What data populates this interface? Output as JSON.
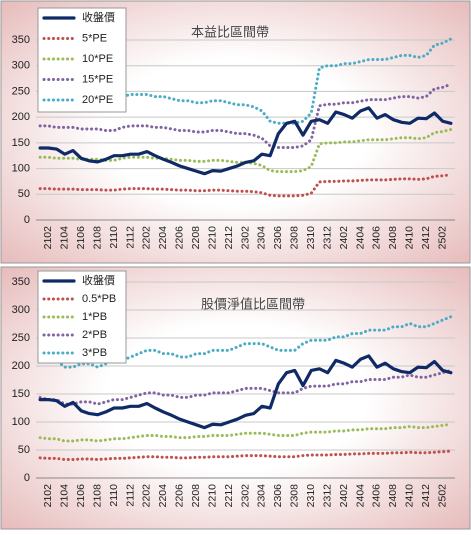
{
  "chart_data": [
    {
      "type": "line",
      "title": "本益比區間帶",
      "grid": true,
      "legend": "upper left",
      "categories": [
        null,
        "2102",
        null,
        "2104",
        null,
        "2106",
        null,
        "2108",
        null,
        "2110",
        null,
        "2112",
        null,
        "2202",
        null,
        "2204",
        null,
        "2206",
        null,
        "2208",
        null,
        "2210",
        null,
        "2212",
        null,
        "2302",
        null,
        "2304",
        null,
        "2306",
        null,
        "2308",
        null,
        "2310",
        null,
        "2312",
        null,
        "2402",
        null,
        "2404",
        null,
        "2406",
        null,
        "2408",
        null,
        "2410",
        null,
        "2412",
        null,
        "2502",
        null
      ],
      "ylim": [
        0,
        350
      ],
      "yticks": [
        0,
        50,
        100,
        150,
        200,
        250,
        300,
        350
      ],
      "series": [
        {
          "name": "收盤價",
          "color": "#0f2a66",
          "values": [
            140,
            140,
            138,
            128,
            135,
            120,
            115,
            113,
            118,
            125,
            125,
            128,
            128,
            133,
            125,
            118,
            112,
            105,
            100,
            95,
            90,
            96,
            95,
            100,
            105,
            112,
            115,
            128,
            125,
            168,
            188,
            192,
            165,
            192,
            195,
            188,
            210,
            205,
            198,
            212,
            218,
            198,
            205,
            195,
            190,
            188,
            198,
            197,
            208,
            192,
            188
          ]
        },
        {
          "name": "5*PE",
          "color": "#c0504d",
          "values": [
            61,
            61,
            60,
            60,
            60,
            59,
            59,
            59,
            58,
            58,
            60,
            61,
            61,
            61,
            60,
            60,
            59,
            58,
            58,
            57,
            57,
            58,
            58,
            57,
            56,
            56,
            55,
            53,
            48,
            47,
            47,
            47,
            48,
            52,
            74,
            75,
            75,
            76,
            76,
            77,
            78,
            78,
            78,
            79,
            80,
            80,
            79,
            80,
            85,
            86,
            88
          ]
        },
        {
          "name": "10*PE",
          "color": "#9bbb59",
          "values": [
            122,
            122,
            120,
            120,
            120,
            118,
            118,
            118,
            116,
            116,
            120,
            122,
            122,
            122,
            120,
            120,
            118,
            116,
            116,
            114,
            114,
            116,
            116,
            114,
            112,
            112,
            110,
            106,
            96,
            94,
            94,
            94,
            96,
            104,
            148,
            150,
            150,
            152,
            152,
            154,
            156,
            156,
            156,
            158,
            160,
            160,
            158,
            160,
            170,
            172,
            176
          ]
        },
        {
          "name": "15*PE",
          "color": "#8064a2",
          "values": [
            183,
            183,
            180,
            180,
            180,
            177,
            177,
            177,
            174,
            174,
            180,
            183,
            183,
            183,
            180,
            180,
            177,
            174,
            174,
            171,
            171,
            174,
            174,
            171,
            168,
            168,
            165,
            159,
            144,
            141,
            141,
            141,
            144,
            156,
            222,
            225,
            225,
            228,
            228,
            231,
            234,
            234,
            234,
            237,
            240,
            240,
            237,
            240,
            255,
            258,
            264
          ]
        },
        {
          "name": "20*PE",
          "color": "#4bacc6",
          "values": [
            244,
            244,
            240,
            240,
            240,
            236,
            236,
            236,
            232,
            232,
            240,
            244,
            244,
            244,
            240,
            240,
            236,
            232,
            232,
            228,
            228,
            232,
            232,
            228,
            224,
            224,
            220,
            212,
            192,
            188,
            188,
            188,
            192,
            208,
            296,
            300,
            300,
            304,
            304,
            308,
            312,
            312,
            312,
            316,
            320,
            320,
            316,
            320,
            340,
            344,
            352
          ]
        }
      ]
    },
    {
      "type": "line",
      "title": "股價淨值比區間帶",
      "grid": true,
      "legend": "upper left",
      "categories": [
        null,
        "2102",
        null,
        "2104",
        null,
        "2106",
        null,
        "2108",
        null,
        "2110",
        null,
        "2112",
        null,
        "2202",
        null,
        "2204",
        null,
        "2206",
        null,
        "2208",
        null,
        "2210",
        null,
        "2212",
        null,
        "2302",
        null,
        "2304",
        null,
        "2306",
        null,
        "2308",
        null,
        "2310",
        null,
        "2312",
        null,
        "2402",
        null,
        "2404",
        null,
        "2406",
        null,
        "2408",
        null,
        "2410",
        null,
        "2412",
        null,
        "2502",
        null
      ],
      "ylim": [
        0,
        350
      ],
      "yticks": [
        0,
        50,
        100,
        150,
        200,
        250,
        300,
        350
      ],
      "series": [
        {
          "name": "收盤價",
          "color": "#0f2a66",
          "values": [
            140,
            140,
            138,
            128,
            135,
            120,
            115,
            113,
            118,
            125,
            125,
            128,
            128,
            133,
            125,
            118,
            112,
            105,
            100,
            95,
            90,
            96,
            95,
            100,
            105,
            112,
            115,
            128,
            125,
            168,
            188,
            192,
            165,
            192,
            195,
            188,
            210,
            205,
            198,
            212,
            218,
            198,
            205,
            195,
            190,
            188,
            198,
            197,
            208,
            192,
            188
          ]
        },
        {
          "name": "0.5*PB",
          "color": "#c0504d",
          "values": [
            36,
            35,
            35,
            33,
            33,
            34,
            34,
            33,
            34,
            35,
            35,
            36,
            37,
            38,
            38,
            37,
            37,
            36,
            36,
            37,
            37,
            38,
            38,
            38,
            39,
            40,
            40,
            40,
            39,
            38,
            38,
            38,
            40,
            41,
            41,
            41,
            42,
            42,
            43,
            43,
            44,
            44,
            44,
            45,
            45,
            46,
            45,
            45,
            46,
            47,
            48
          ]
        },
        {
          "name": "1*PB",
          "color": "#9bbb59",
          "values": [
            72,
            70,
            70,
            66,
            66,
            68,
            68,
            66,
            68,
            70,
            70,
            72,
            74,
            76,
            76,
            74,
            74,
            72,
            72,
            74,
            74,
            76,
            76,
            76,
            78,
            80,
            80,
            80,
            78,
            76,
            76,
            76,
            80,
            82,
            82,
            82,
            84,
            84,
            86,
            86,
            88,
            88,
            88,
            90,
            90,
            92,
            90,
            90,
            92,
            94,
            96
          ]
        },
        {
          "name": "2*PB",
          "color": "#8064a2",
          "values": [
            144,
            140,
            140,
            132,
            132,
            136,
            136,
            132,
            136,
            140,
            140,
            144,
            148,
            152,
            152,
            148,
            148,
            144,
            144,
            148,
            148,
            152,
            152,
            152,
            156,
            160,
            160,
            160,
            156,
            152,
            152,
            152,
            160,
            164,
            164,
            164,
            168,
            168,
            172,
            172,
            176,
            176,
            176,
            180,
            180,
            184,
            180,
            180,
            184,
            188,
            192
          ]
        },
        {
          "name": "3*PB",
          "color": "#4bacc6",
          "values": [
            216,
            210,
            210,
            198,
            198,
            204,
            204,
            198,
            204,
            210,
            210,
            216,
            222,
            228,
            228,
            222,
            222,
            216,
            216,
            222,
            222,
            228,
            228,
            228,
            234,
            240,
            240,
            240,
            234,
            228,
            228,
            228,
            240,
            246,
            246,
            246,
            252,
            252,
            258,
            258,
            264,
            264,
            264,
            270,
            270,
            276,
            270,
            270,
            276,
            282,
            288
          ]
        }
      ]
    }
  ]
}
